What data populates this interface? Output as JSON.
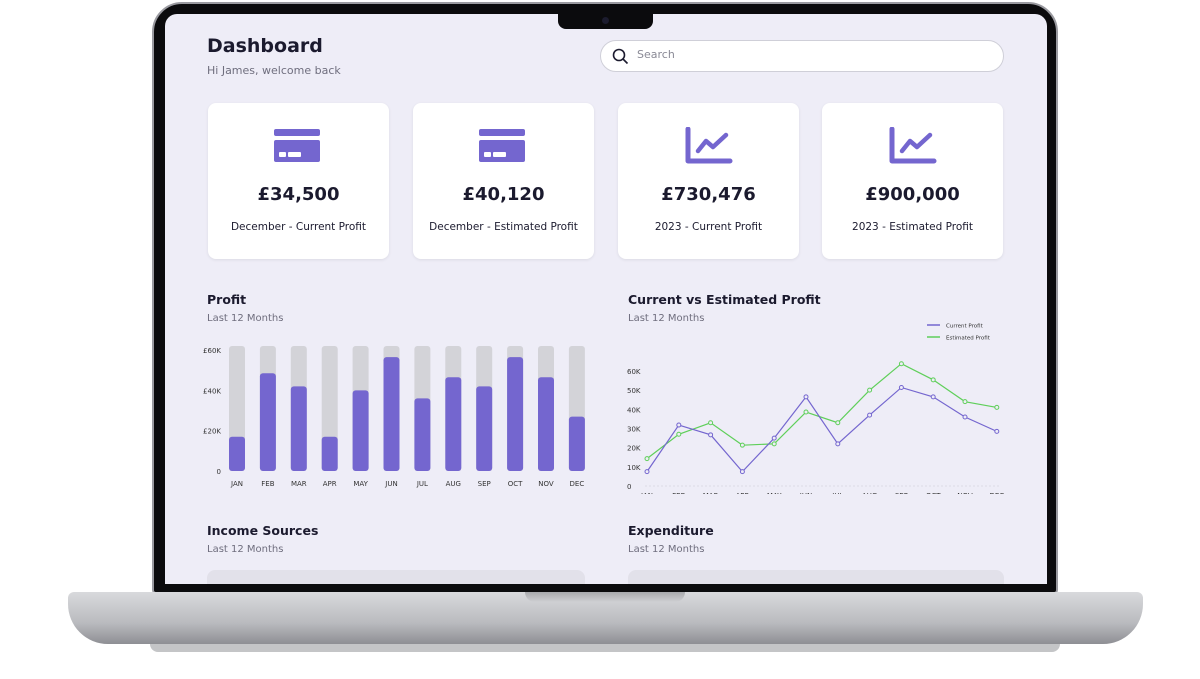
{
  "header": {
    "title": "Dashboard",
    "subtitle": "Hi James, welcome back",
    "search_placeholder": "Search"
  },
  "colors": {
    "accent": "#7466cf",
    "estimated": "#5fcf5a",
    "bar_track": "#d3d3d8",
    "background": "#eeedf7"
  },
  "cards": [
    {
      "icon": "credit-card-icon",
      "amount": "£34,500",
      "label": "December - Current Profit"
    },
    {
      "icon": "credit-card-icon",
      "amount": "£40,120",
      "label": "December - Estimated Profit"
    },
    {
      "icon": "line-chart-icon",
      "amount": "£730,476",
      "label": "2023 - Current Profit"
    },
    {
      "icon": "line-chart-icon",
      "amount": "£900,000",
      "label": "2023 - Estimated Profit"
    }
  ],
  "sections": {
    "profit": {
      "title": "Profit",
      "subtitle": "Last 12 Months"
    },
    "compare": {
      "title": "Current vs Estimated Profit",
      "subtitle": "Last 12 Months"
    },
    "income": {
      "title": "Income Sources",
      "subtitle": "Last 12 Months"
    },
    "expenditure": {
      "title": "Expenditure",
      "subtitle": "Last 12 Months"
    }
  },
  "chart_data": [
    {
      "type": "bar",
      "categories": [
        "JAN",
        "FEB",
        "MAR",
        "APR",
        "MAY",
        "JUN",
        "JUL",
        "AUG",
        "SEP",
        "OCT",
        "NOV",
        "DEC"
      ],
      "values": [
        17,
        48.5,
        42,
        17,
        40,
        56.5,
        36,
        46.5,
        42,
        56.5,
        46.5,
        27
      ],
      "yticks": [
        "0",
        "£20K",
        "£40K",
        "£60K"
      ],
      "ytick_values": [
        0,
        20,
        40,
        60
      ],
      "ylim": [
        0,
        62
      ],
      "units": "£K",
      "grid": false
    },
    {
      "type": "line",
      "categories": [
        "JAN",
        "FEB",
        "MAR",
        "APR",
        "MAY",
        "JUN",
        "JUL",
        "AUG",
        "SEP",
        "OCT",
        "NOV",
        "DEC"
      ],
      "series": [
        {
          "name": "Current Profit",
          "color": "#7466cf",
          "values": [
            7.5,
            31.8,
            26.7,
            7.5,
            25,
            46.5,
            22,
            37,
            51.4,
            46.5,
            36,
            28.5
          ]
        },
        {
          "name": "Estimated Profit",
          "color": "#5fcf5a",
          "values": [
            14.3,
            27,
            33,
            21.3,
            22,
            38.6,
            33,
            50,
            63.8,
            55.4,
            44,
            41
          ]
        }
      ],
      "yticks": [
        "0",
        "10K",
        "20K",
        "30K",
        "40K",
        "50K",
        "60K"
      ],
      "ytick_values": [
        0,
        10,
        20,
        30,
        40,
        50,
        60
      ],
      "ylim": [
        0,
        60
      ],
      "legend": "top-right",
      "grid": false
    }
  ]
}
